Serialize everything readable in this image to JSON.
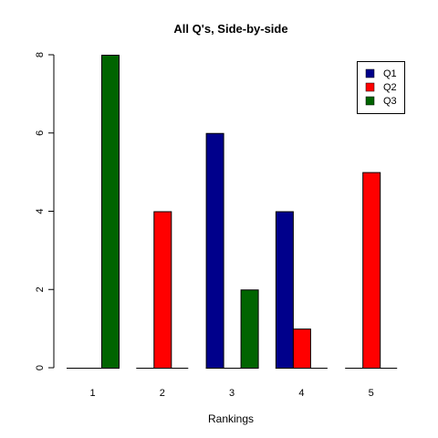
{
  "chart_data": {
    "type": "bar",
    "layout": "grouped",
    "title": "All Q's, Side-by-side",
    "xlabel": "Rankings",
    "ylabel": "",
    "categories": [
      "1",
      "2",
      "3",
      "4",
      "5"
    ],
    "series": [
      {
        "name": "Q1",
        "color": "#00008B",
        "values": [
          0,
          0,
          6,
          4,
          0
        ]
      },
      {
        "name": "Q2",
        "color": "#FF0000",
        "values": [
          0,
          4,
          0,
          1,
          5
        ]
      },
      {
        "name": "Q3",
        "color": "#006400",
        "values": [
          8,
          0,
          2,
          0,
          0
        ]
      }
    ],
    "yticks": [
      "0",
      "2",
      "4",
      "6",
      "8"
    ],
    "ylim": [
      0,
      8
    ],
    "grid": false,
    "legend_position": "top-right"
  }
}
